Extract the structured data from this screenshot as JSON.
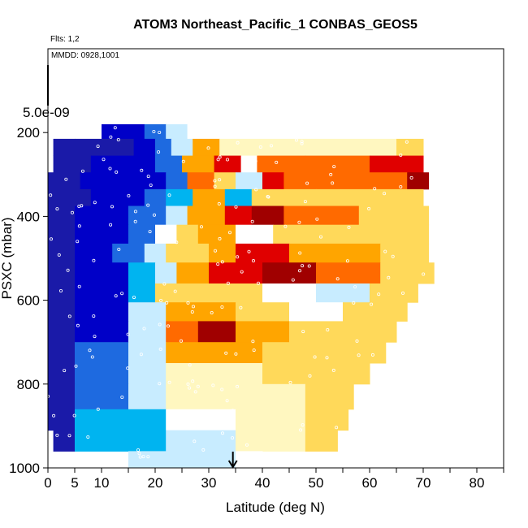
{
  "chart_data": {
    "type": "heatmap",
    "title": "ATOM3 Northeast_Pacific_1 CONBAS_GEOS5",
    "flights_label": "Flts: 1,2",
    "date_label": "MMDD: 0928,1001",
    "xlabel": "Latitude (deg N)",
    "ylabel": "PSXC (mbar)",
    "xlim": [
      0,
      85
    ],
    "ylim": [
      1000,
      0
    ],
    "x_ticks": [
      "0",
      "5",
      "10",
      "20",
      "30",
      "40",
      "50",
      "60",
      "70",
      "80"
    ],
    "y_ticks": [
      "200",
      "400",
      "600",
      "800",
      "1000"
    ],
    "colorbar_max_label": "5.0e-09",
    "colorbar_max_value": 5e-09,
    "marker": {
      "x": 34.5,
      "label": "arrow"
    },
    "colormap": [
      "#7a1fe0",
      "#1a1aa8",
      "#0000c8",
      "#1e6ae0",
      "#00b4f0",
      "#c8ecff",
      "#ffffff",
      "#fff7c0",
      "#ffd95a",
      "#ffa500",
      "#ff6a00",
      "#e00000",
      "#a00000"
    ],
    "rows": [
      {
        "p_top": 180,
        "p_bot": 215,
        "segments": [
          [
            10,
            18,
            2
          ],
          [
            18,
            22,
            2.5
          ],
          [
            22,
            26,
            5
          ],
          [
            26,
            32,
            6
          ]
        ]
      },
      {
        "p_top": 215,
        "p_bot": 255,
        "segments": [
          [
            1,
            5,
            1
          ],
          [
            5,
            16,
            1.4
          ],
          [
            16,
            20,
            2
          ],
          [
            20,
            23,
            3
          ],
          [
            23,
            27,
            4.5
          ],
          [
            27,
            32,
            9
          ],
          [
            32,
            48,
            7
          ],
          [
            48,
            65,
            7.3
          ],
          [
            65,
            70,
            8
          ]
        ]
      },
      {
        "p_top": 255,
        "p_bot": 295,
        "segments": [
          [
            1,
            8,
            1.2
          ],
          [
            8,
            20,
            1.6
          ],
          [
            20,
            25,
            3
          ],
          [
            25,
            31,
            9
          ],
          [
            31,
            36,
            11
          ],
          [
            36,
            39,
            5.5
          ],
          [
            39,
            48,
            9.8
          ],
          [
            48,
            60,
            10
          ],
          [
            60,
            70,
            10.5
          ]
        ]
      },
      {
        "p_top": 295,
        "p_bot": 335,
        "segments": [
          [
            0,
            6,
            1.1
          ],
          [
            6,
            15,
            1.6
          ],
          [
            15,
            22,
            1.8
          ],
          [
            22,
            26,
            3
          ],
          [
            26,
            31,
            10
          ],
          [
            31,
            35,
            8
          ],
          [
            35,
            40,
            5
          ],
          [
            40,
            44,
            11
          ],
          [
            44,
            55,
            9.5
          ],
          [
            55,
            67,
            10
          ],
          [
            67,
            71,
            12
          ]
        ]
      },
      {
        "p_top": 335,
        "p_bot": 375,
        "segments": [
          [
            0,
            8,
            1.3
          ],
          [
            8,
            15,
            1.8
          ],
          [
            15,
            18,
            2
          ],
          [
            18,
            22,
            2.8
          ],
          [
            22,
            27,
            4
          ],
          [
            27,
            33,
            8.5
          ],
          [
            33,
            38,
            3.5
          ],
          [
            38,
            50,
            8
          ],
          [
            50,
            60,
            8.2
          ],
          [
            60,
            70,
            8
          ]
        ]
      },
      {
        "p_top": 375,
        "p_bot": 420,
        "segments": [
          [
            0,
            5,
            1.1
          ],
          [
            5,
            15,
            1.7
          ],
          [
            15,
            22,
            2.6
          ],
          [
            22,
            26,
            4.5
          ],
          [
            26,
            33,
            9
          ],
          [
            33,
            38,
            10.5
          ],
          [
            38,
            44,
            11.5
          ],
          [
            44,
            58,
            9.5
          ],
          [
            58,
            71,
            8
          ]
        ]
      },
      {
        "p_top": 420,
        "p_bot": 465,
        "segments": [
          [
            0,
            5,
            1
          ],
          [
            5,
            15,
            2
          ],
          [
            15,
            20,
            2.5
          ],
          [
            20,
            24,
            5.5
          ],
          [
            24,
            28,
            7.5
          ],
          [
            28,
            35,
            9
          ],
          [
            35,
            42,
            6
          ],
          [
            42,
            58,
            7.5
          ],
          [
            58,
            71,
            8
          ]
        ]
      },
      {
        "p_top": 465,
        "p_bot": 510,
        "segments": [
          [
            0,
            5,
            1
          ],
          [
            5,
            12,
            1.8
          ],
          [
            12,
            18,
            2.5
          ],
          [
            18,
            22,
            4.5
          ],
          [
            22,
            30,
            7.5
          ],
          [
            30,
            35,
            9
          ],
          [
            35,
            45,
            10.5
          ],
          [
            45,
            62,
            9
          ],
          [
            62,
            71,
            8
          ]
        ]
      },
      {
        "p_top": 510,
        "p_bot": 560,
        "segments": [
          [
            0,
            5,
            1
          ],
          [
            5,
            15,
            2
          ],
          [
            15,
            20,
            3.5
          ],
          [
            20,
            24,
            5
          ],
          [
            24,
            30,
            8.5
          ],
          [
            30,
            40,
            10.5
          ],
          [
            40,
            50,
            11.5
          ],
          [
            50,
            62,
            9.5
          ],
          [
            62,
            72,
            8
          ]
        ]
      },
      {
        "p_top": 560,
        "p_bot": 605,
        "segments": [
          [
            0,
            5,
            1
          ],
          [
            5,
            15,
            2.2
          ],
          [
            15,
            20,
            4
          ],
          [
            20,
            30,
            7.5
          ],
          [
            30,
            40,
            8
          ],
          [
            40,
            50,
            5.5
          ],
          [
            50,
            60,
            4.5
          ],
          [
            60,
            69,
            8
          ]
        ]
      },
      {
        "p_top": 605,
        "p_bot": 650,
        "segments": [
          [
            0,
            5,
            1
          ],
          [
            5,
            15,
            2.4
          ],
          [
            15,
            22,
            5
          ],
          [
            22,
            35,
            8.5
          ],
          [
            35,
            45,
            7.5
          ],
          [
            45,
            55,
            6
          ],
          [
            55,
            62,
            7.5
          ],
          [
            62,
            67,
            8
          ]
        ]
      },
      {
        "p_top": 650,
        "p_bot": 700,
        "segments": [
          [
            0,
            5,
            1
          ],
          [
            5,
            15,
            2.4
          ],
          [
            15,
            22,
            5
          ],
          [
            22,
            28,
            10
          ],
          [
            28,
            35,
            11.5
          ],
          [
            35,
            45,
            8.5
          ],
          [
            45,
            55,
            8.2
          ],
          [
            55,
            65,
            8
          ]
        ]
      },
      {
        "p_top": 700,
        "p_bot": 750,
        "segments": [
          [
            0,
            5,
            1
          ],
          [
            5,
            15,
            2.5
          ],
          [
            15,
            22,
            5
          ],
          [
            22,
            40,
            8.5
          ],
          [
            40,
            55,
            8.3
          ],
          [
            55,
            63,
            8
          ]
        ]
      },
      {
        "p_top": 750,
        "p_bot": 800,
        "segments": [
          [
            0,
            5,
            1
          ],
          [
            5,
            15,
            2.6
          ],
          [
            15,
            22,
            5
          ],
          [
            22,
            40,
            7.2
          ],
          [
            40,
            50,
            7.6
          ],
          [
            50,
            60,
            8
          ]
        ]
      },
      {
        "p_top": 800,
        "p_bot": 860,
        "segments": [
          [
            0,
            5,
            1
          ],
          [
            5,
            15,
            3.2
          ],
          [
            15,
            22,
            5
          ],
          [
            22,
            35,
            6.8
          ],
          [
            35,
            48,
            7.3
          ],
          [
            48,
            57,
            8
          ]
        ]
      },
      {
        "p_top": 860,
        "p_bot": 910,
        "segments": [
          [
            0,
            5,
            1
          ],
          [
            5,
            15,
            3.5
          ],
          [
            15,
            22,
            3.8
          ],
          [
            22,
            35,
            5.5
          ],
          [
            35,
            48,
            7.3
          ],
          [
            48,
            56,
            8
          ]
        ]
      },
      {
        "p_top": 910,
        "p_bot": 960,
        "segments": [
          [
            1,
            5,
            1
          ],
          [
            5,
            15,
            3.5
          ],
          [
            15,
            22,
            4
          ],
          [
            22,
            35,
            5
          ],
          [
            35,
            48,
            7.2
          ],
          [
            48,
            54,
            7.5
          ]
        ]
      },
      {
        "p_top": 960,
        "p_bot": 1000,
        "segments": [
          [
            15,
            25,
            4.5
          ],
          [
            25,
            35,
            5.2
          ],
          [
            35,
            40,
            5.8
          ]
        ]
      }
    ]
  }
}
